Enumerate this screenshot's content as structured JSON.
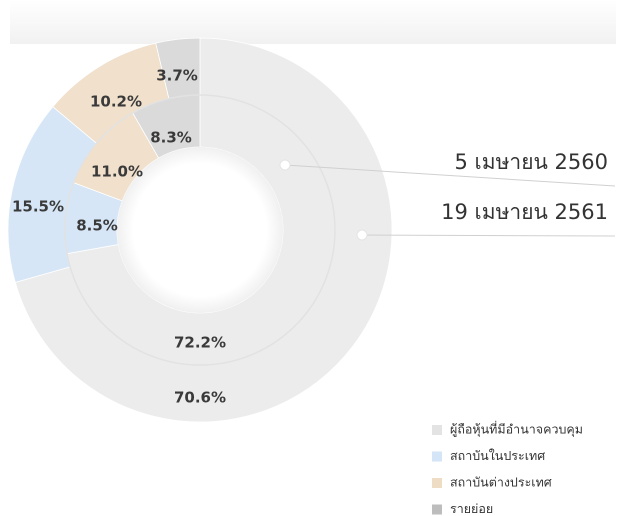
{
  "chart_data": {
    "type": "donut",
    "categories": [
      "ผู้ถือหุ้นที่มีอำนาจควบคุม",
      "สถาบันในประเทศ",
      "สถาบันต่างประเทศ",
      "รายย่อย"
    ],
    "colors": [
      "#ececec",
      "#d6e6f6",
      "#f0e0cc",
      "#dadada"
    ],
    "legend_colors": [
      "#e3e3e3",
      "#d3e5f7",
      "#efdcc5",
      "#bdbdbd"
    ],
    "series": [
      {
        "name": "5 เมษายน 2560",
        "values": [
          72.2,
          8.5,
          11.0,
          8.3
        ],
        "value_labels": [
          "72.2%",
          "8.5%",
          "11.0%",
          "8.3%"
        ]
      },
      {
        "name": "19 เมษายน 2561",
        "values": [
          70.6,
          15.5,
          10.2,
          3.7
        ],
        "value_labels": [
          "70.6%",
          "15.5%",
          "10.2%",
          "3.7%"
        ]
      }
    ],
    "legend": "bottom-right"
  }
}
